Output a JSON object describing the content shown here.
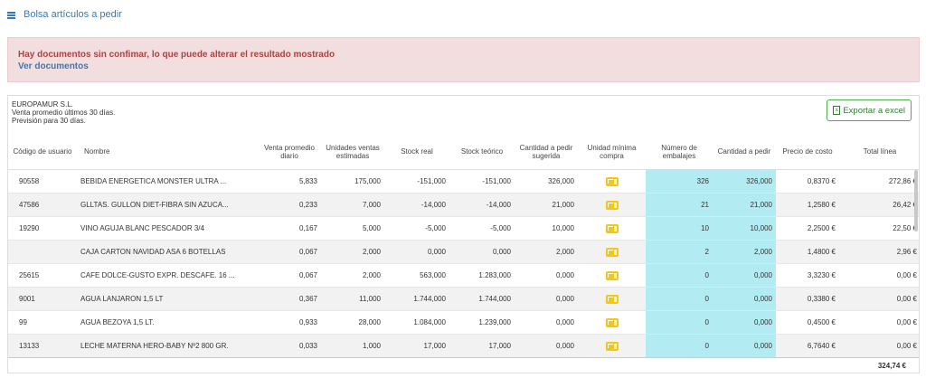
{
  "page": {
    "title": "Bolsa artículos a pedir"
  },
  "alert": {
    "message": "Hay documentos sin confimar, lo que puede alterar el resultado mostrado",
    "link": "Ver documentos"
  },
  "info": {
    "company": "EUROPAMUR S.L.",
    "line1": "Venta promedio últimos 30 días.",
    "line2": "Previsión para 30 días."
  },
  "export": {
    "label": "Exportar a excel",
    "icon": "excel-icon"
  },
  "columns": {
    "code": "Código de usuario",
    "name": "Nombre",
    "avg_sale": "Venta promedio diario",
    "est_units": "Unidades ventas estimadas",
    "real_stock": "Stock real",
    "theo_stock": "Stock teórico",
    "suggested": "Cantidad a pedir sugerida",
    "min_unit": "Unidad mínima compra",
    "packages": "Número de embalajes",
    "qty": "Cantidad a pedir",
    "cost": "Precio de costo",
    "total": "Total línea"
  },
  "rows": [
    {
      "code": "90558",
      "name": "BEBIDA ENERGETICA MONSTER ULTRA ...",
      "avg": "5,833",
      "est": "175,000",
      "real": "-151,000",
      "theo": "-151,000",
      "sug": "326,000",
      "pk": "326",
      "qty": "326,000",
      "cost": "0,8370 €",
      "total": "272,86 €"
    },
    {
      "code": "47586",
      "name": "GLLTAS. GULLON DIET-FIBRA SIN AZUCA...",
      "avg": "0,233",
      "est": "7,000",
      "real": "-14,000",
      "theo": "-14,000",
      "sug": "21,000",
      "pk": "21",
      "qty": "21,000",
      "cost": "1,2580 €",
      "total": "26,42 €"
    },
    {
      "code": "19290",
      "name": "VINO AGUJA BLANC PESCADOR 3/4",
      "avg": "0,167",
      "est": "5,000",
      "real": "-5,000",
      "theo": "-5,000",
      "sug": "10,000",
      "pk": "10",
      "qty": "10,000",
      "cost": "2,2500 €",
      "total": "22,50 €"
    },
    {
      "code": "",
      "name": "CAJA CARTON NAVIDAD ASA 6 BOTELLAS",
      "avg": "0,067",
      "est": "2,000",
      "real": "0,000",
      "theo": "0,000",
      "sug": "2,000",
      "pk": "2",
      "qty": "2,000",
      "cost": "1,4800 €",
      "total": "2,96 €"
    },
    {
      "code": "25615",
      "name": "CAFE DOLCE-GUSTO EXPR. DESCAFE. 16 ...",
      "avg": "0,067",
      "est": "2,000",
      "real": "563,000",
      "theo": "1.283,000",
      "sug": "0,000",
      "pk": "0",
      "qty": "0,000",
      "cost": "3,3230 €",
      "total": "0,00 €"
    },
    {
      "code": "9001",
      "name": "AGUA LANJARON 1,5 LT",
      "avg": "0,367",
      "est": "11,000",
      "real": "1.744,000",
      "theo": "1.744,000",
      "sug": "0,000",
      "pk": "0",
      "qty": "0,000",
      "cost": "0,3380 €",
      "total": "0,00 €"
    },
    {
      "code": "99",
      "name": "AGUA BEZOYA 1,5 LT.",
      "avg": "0,933",
      "est": "28,000",
      "real": "1.084,000",
      "theo": "1.239,000",
      "sug": "0,000",
      "pk": "0",
      "qty": "0,000",
      "cost": "0,4500 €",
      "total": "0,00 €"
    },
    {
      "code": "13133",
      "name": "LECHE MATERNA HERO-BABY Nº2 800 GR.",
      "avg": "0,033",
      "est": "1,000",
      "real": "17,000",
      "theo": "17,000",
      "sug": "0,000",
      "pk": "0",
      "qty": "0,000",
      "cost": "6,7640 €",
      "total": "0,00 €"
    }
  ],
  "footer": {
    "total": "324,74 €"
  },
  "colors": {
    "highlight": "#b2ebf2",
    "link": "#3a78b5",
    "alert_text": "#a94442"
  }
}
